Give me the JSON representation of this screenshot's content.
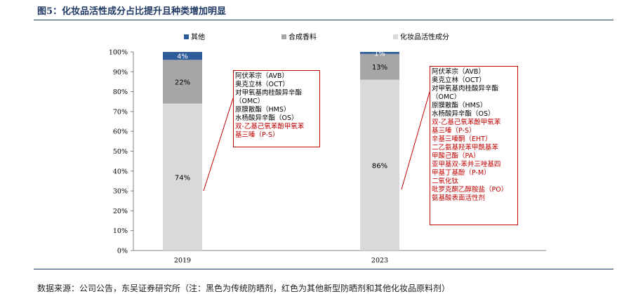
{
  "figure": {
    "title": "图5：化妆品活性成分占比提升且种类增加明显",
    "source": "数据来源：公司公告，东吴证券研究所（注：黑色为传统防晒剂，红色为其他新型防晒剂和其他化妆品原料剂）"
  },
  "chart_data": {
    "type": "bar",
    "stacked": true,
    "categories": [
      "2019",
      "2023"
    ],
    "series": [
      {
        "name": "化妆品活性成分",
        "values": [
          74,
          86
        ],
        "labels": [
          "74%",
          "86%"
        ],
        "color": "#d9d9d9"
      },
      {
        "name": "合成香料",
        "values": [
          22,
          13
        ],
        "labels": [
          "22%",
          "13%"
        ],
        "color": "#a6a6a6"
      },
      {
        "name": "其他",
        "values": [
          4,
          1
        ],
        "labels": [
          "4%",
          "1%"
        ],
        "color": "#2e5c9a"
      }
    ],
    "legend_order": [
      "其他",
      "合成香料",
      "化妆品活性成分"
    ],
    "ylim": [
      0,
      100
    ],
    "yticks": [
      "0%",
      "10%",
      "20%",
      "30%",
      "40%",
      "50%",
      "60%",
      "70%",
      "80%",
      "90%",
      "100%"
    ],
    "legend_position": "top",
    "grid": false
  },
  "annotations": [
    {
      "category": "2019",
      "items": [
        {
          "text": "阿伏苯宗（AVB）",
          "color": "#000000"
        },
        {
          "text": "奥克立林（OCT）",
          "color": "#000000"
        },
        {
          "text": "对甲氧基肉桂酸异辛酯",
          "color": "#000000"
        },
        {
          "text": "（OMC）",
          "color": "#000000"
        },
        {
          "text": "原膜散酯（HMS）",
          "color": "#000000"
        },
        {
          "text": "水杨酸异辛酯（OS）",
          "color": "#000000"
        },
        {
          "text": "双-乙基己氧苯酚甲氧苯",
          "color": "#c00000"
        },
        {
          "text": "基三嗪（P-S）",
          "color": "#c00000"
        }
      ]
    },
    {
      "category": "2023",
      "items": [
        {
          "text": "阿伏苯宗（AVB）",
          "color": "#000000"
        },
        {
          "text": "奥克立林（OCT）",
          "color": "#000000"
        },
        {
          "text": "对甲氧基肉桂酸异辛酯",
          "color": "#000000"
        },
        {
          "text": "（OMC）",
          "color": "#000000"
        },
        {
          "text": "原膜散酯（HMS）",
          "color": "#000000"
        },
        {
          "text": "水杨酸异辛酯（OS）",
          "color": "#000000"
        },
        {
          "text": "双-乙基己氧苯酚甲氧苯",
          "color": "#c00000"
        },
        {
          "text": "基三嗪（P-S）",
          "color": "#c00000"
        },
        {
          "text": "辛基三嗪酮（EHT）",
          "color": "#c00000"
        },
        {
          "text": "二乙氨基羟苯甲酰基苯",
          "color": "#c00000"
        },
        {
          "text": "甲酸己酯（PA）",
          "color": "#c00000"
        },
        {
          "text": "亚甲基双-苯并三唑基四",
          "color": "#c00000"
        },
        {
          "text": "甲基丁基酚（P-M）",
          "color": "#c00000"
        },
        {
          "text": "二氧化钛",
          "color": "#c00000"
        },
        {
          "text": "吡罗克酮乙醇胺盐（PO）",
          "color": "#c00000"
        },
        {
          "text": "氨基酸表面活性剂",
          "color": "#c00000"
        }
      ]
    }
  ]
}
